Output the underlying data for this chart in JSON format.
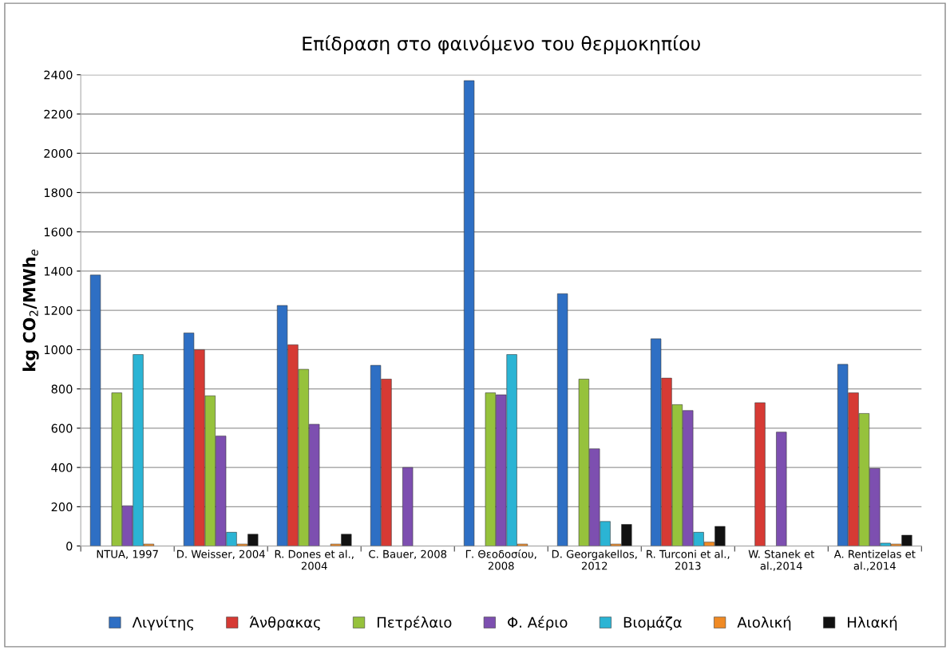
{
  "chart_data": {
    "type": "bar",
    "title": "Επίδραση στο φαινόμενο του θερμοκηπίου",
    "ylabel": "kg CO$_{2}$/MWh$_{e}$",
    "categories": [
      "NTUA, 1997",
      "D. Weisser, 2004",
      "R. Dones et al.,\n2004",
      "C. Bauer, 2008",
      "Γ. Θεοδοσίου,\n2008",
      "D. Georgakellos,\n2012",
      "R. Turconi et al.,\n2013",
      "W. Stanek et\nal.,2014",
      "A. Rentizelas et\nal.,2014"
    ],
    "series": [
      {
        "name": "Λιγνίτης",
        "color": "#2e6fc4",
        "values": [
          1380,
          1085,
          1225,
          920,
          2370,
          1285,
          1055,
          null,
          925
        ]
      },
      {
        "name": "Άνθρακας",
        "color": "#d63a34",
        "values": [
          null,
          1000,
          1025,
          850,
          null,
          null,
          855,
          730,
          780
        ]
      },
      {
        "name": "Πετρέλαιο",
        "color": "#96c23c",
        "values": [
          780,
          765,
          900,
          null,
          780,
          850,
          720,
          null,
          675
        ]
      },
      {
        "name": "Φ. Αέριο",
        "color": "#7d4fb0",
        "values": [
          205,
          560,
          620,
          400,
          770,
          495,
          690,
          580,
          395
        ]
      },
      {
        "name": "Βιομάζα",
        "color": "#2bb4d4",
        "values": [
          975,
          70,
          null,
          null,
          975,
          125,
          70,
          null,
          15
        ]
      },
      {
        "name": "Αιολική",
        "color": "#f08a24",
        "values": [
          10,
          10,
          10,
          null,
          10,
          10,
          20,
          null,
          10
        ]
      },
      {
        "name": "Ηλιακή",
        "color": "#111111",
        "values": [
          null,
          60,
          60,
          null,
          null,
          110,
          100,
          null,
          55
        ]
      }
    ],
    "ylim": [
      0,
      2400
    ],
    "yticks": [
      0,
      200,
      400,
      600,
      800,
      1000,
      1200,
      1400,
      1600,
      1800,
      2000,
      2200,
      2400
    ],
    "grid": "y",
    "legend": "bottom"
  }
}
